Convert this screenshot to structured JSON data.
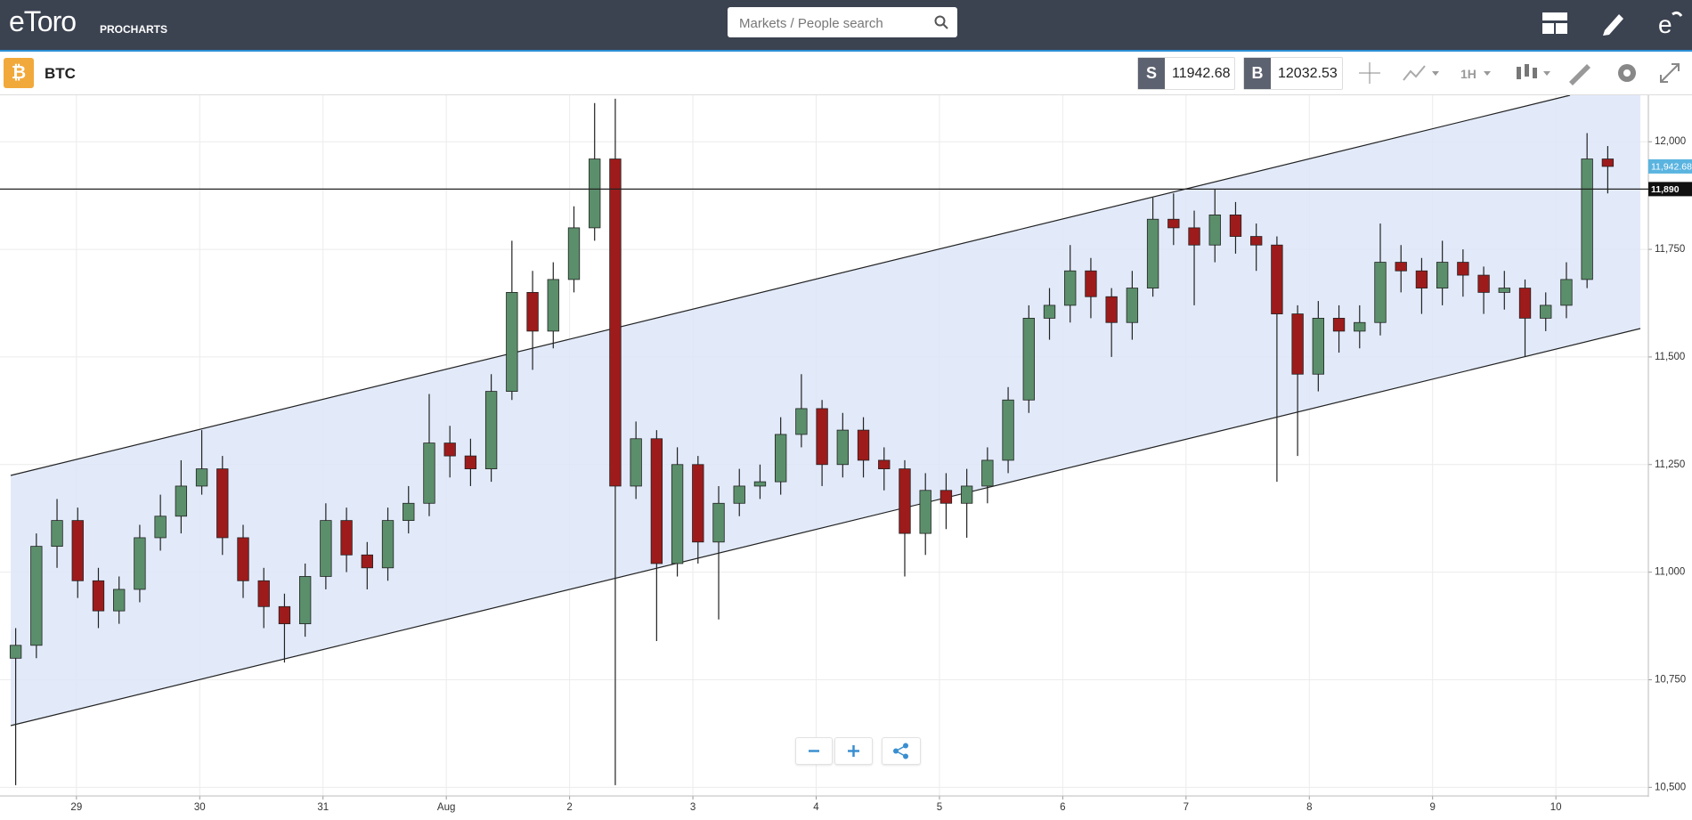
{
  "header": {
    "logo": "eToro",
    "product": "PROCHARTS",
    "search_placeholder": "Markets / People search"
  },
  "toolbar": {
    "instrument": "BTC",
    "sell_label": "S",
    "sell_price": "11942.68",
    "buy_label": "B",
    "buy_price": "12032.53",
    "timeframe": "1H"
  },
  "chart_data": {
    "type": "candlestick",
    "up_color": "#5b8f6b",
    "down_color": "#9e1b1b",
    "xlim": [
      28.38,
      41.75
    ],
    "xticks": [
      29,
      30,
      31,
      {
        "value": 32,
        "label": "Aug"
      },
      {
        "value": 33,
        "label": "2"
      },
      {
        "value": 34,
        "label": "3"
      },
      {
        "value": 35,
        "label": "4"
      },
      {
        "value": 36,
        "label": "5"
      },
      {
        "value": 37,
        "label": "6"
      },
      {
        "value": 38,
        "label": "7"
      },
      {
        "value": 39,
        "label": "8"
      },
      {
        "value": 40,
        "label": "9"
      },
      {
        "value": 41,
        "label": "10"
      }
    ],
    "ylim": [
      10480,
      12108
    ],
    "yticks": [
      {
        "value": 10500,
        "label": "10,500"
      },
      {
        "value": 10750,
        "label": "10,750"
      },
      {
        "value": 11000,
        "label": "11,000"
      },
      {
        "value": 11250,
        "label": "11,250"
      },
      {
        "value": 11500,
        "label": "11,500"
      },
      {
        "value": 11750,
        "label": "11,750"
      },
      {
        "value": 12000,
        "label": "12,000"
      }
    ],
    "grid": true,
    "hline": {
      "value": 11890,
      "label": "11,890"
    },
    "last_price": {
      "value": 11942.68,
      "label": "11,942.68"
    },
    "series": [
      {
        "open": [
          10800,
          10830,
          11060,
          11120,
          10980,
          10910,
          10960,
          11080,
          11130,
          11200,
          11240,
          11080,
          10980,
          10920,
          10880,
          10990,
          11120,
          11040,
          11010,
          11120,
          11160,
          11300,
          11270,
          11240,
          11420,
          11650,
          11560,
          11680,
          11800,
          11960,
          11200,
          11310,
          11020,
          11250,
          11070,
          11160,
          11200,
          11210,
          11320,
          11380,
          11250,
          11330,
          11260,
          11240,
          11090,
          11190,
          11160,
          11200,
          11260,
          11400,
          11590,
          11620,
          11700,
          11640,
          11580,
          11660,
          11820,
          11800,
          11760,
          11830,
          11780,
          11760,
          11600,
          11460,
          11590,
          11560,
          11580,
          11720,
          11700,
          11660,
          11720,
          11690,
          11650,
          11660,
          11590,
          11620,
          11680,
          11960
        ],
        "high": [
          10870,
          11090,
          11170,
          11150,
          11010,
          10990,
          11110,
          11180,
          11260,
          11330,
          11270,
          11110,
          11010,
          10950,
          11020,
          11160,
          11150,
          11070,
          11150,
          11200,
          11414,
          11340,
          11310,
          11460,
          11770,
          11700,
          11720,
          11850,
          12090,
          12100,
          11350,
          11330,
          11290,
          11270,
          11200,
          11240,
          11250,
          11360,
          11460,
          11400,
          11370,
          11360,
          11290,
          11260,
          11230,
          11230,
          11240,
          11290,
          11430,
          11620,
          11660,
          11760,
          11730,
          11660,
          11700,
          11870,
          11880,
          11840,
          11890,
          11860,
          11810,
          11780,
          11620,
          11630,
          11620,
          11620,
          11810,
          11760,
          11730,
          11770,
          11750,
          11710,
          11700,
          11680,
          11650,
          11720,
          12020,
          11990
        ],
        "low": [
          10505,
          10800,
          11010,
          10940,
          10870,
          10880,
          10930,
          11050,
          11090,
          11180,
          11040,
          10940,
          10870,
          10790,
          10850,
          10960,
          11000,
          10960,
          10980,
          11090,
          11130,
          11220,
          11200,
          11210,
          11400,
          11470,
          11520,
          11650,
          11770,
          10505,
          11170,
          10840,
          10990,
          11020,
          10890,
          11130,
          11170,
          11180,
          11290,
          11200,
          11220,
          11220,
          11190,
          10990,
          11040,
          11100,
          11080,
          11160,
          11230,
          11370,
          11540,
          11580,
          11590,
          11500,
          11540,
          11640,
          11760,
          11620,
          11720,
          11740,
          11700,
          11210,
          11270,
          11420,
          11510,
          11520,
          11550,
          11650,
          11600,
          11620,
          11640,
          11600,
          11610,
          11500,
          11560,
          11590,
          11660,
          11880
        ],
        "close": [
          10830,
          11060,
          11120,
          10980,
          10910,
          10960,
          11080,
          11130,
          11200,
          11240,
          11080,
          10980,
          10920,
          10880,
          10990,
          11120,
          11040,
          11010,
          11120,
          11160,
          11300,
          11270,
          11240,
          11420,
          11650,
          11560,
          11680,
          11800,
          11960,
          11200,
          11310,
          11020,
          11250,
          11070,
          11160,
          11200,
          11210,
          11320,
          11380,
          11250,
          11330,
          11260,
          11240,
          11090,
          11190,
          11160,
          11200,
          11260,
          11400,
          11590,
          11620,
          11700,
          11640,
          11580,
          11660,
          11820,
          11800,
          11760,
          11830,
          11780,
          11760,
          11600,
          11460,
          11590,
          11560,
          11580,
          11720,
          11700,
          11660,
          11720,
          11690,
          11650,
          11660,
          11590,
          11620,
          11680,
          11960,
          11942.68
        ]
      }
    ]
  }
}
